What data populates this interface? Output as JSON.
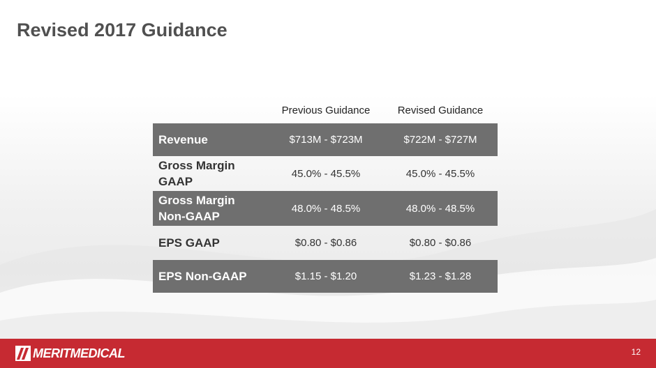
{
  "slide": {
    "title": "Revised 2017 Guidance",
    "page_number": "12"
  },
  "table": {
    "headers": [
      "Previous Guidance",
      "Revised Guidance"
    ],
    "rows": [
      {
        "label": "Revenue",
        "previous": "$713M - $723M",
        "revised": "$722M - $727M"
      },
      {
        "label_line1": "Gross Margin",
        "label_line2": "GAAP",
        "previous": "45.0% - 45.5%",
        "revised": "45.0% - 45.5%"
      },
      {
        "label_line1": "Gross Margin",
        "label_line2": "Non-GAAP",
        "previous": "48.0% - 48.5%",
        "revised": "48.0% - 48.5%"
      },
      {
        "label": "EPS GAAP",
        "previous": "$0.80 - $0.86",
        "revised": "$0.80 - $0.86"
      },
      {
        "label": "EPS Non-GAAP",
        "previous": "$1.15 - $1.20",
        "revised": "$1.23 - $1.28"
      }
    ]
  },
  "footer": {
    "logo_text": "MERITMEDICAL",
    "brand_color": "#c62a32"
  },
  "colors": {
    "row_dark": "#6f6f6f",
    "title": "#505050"
  }
}
